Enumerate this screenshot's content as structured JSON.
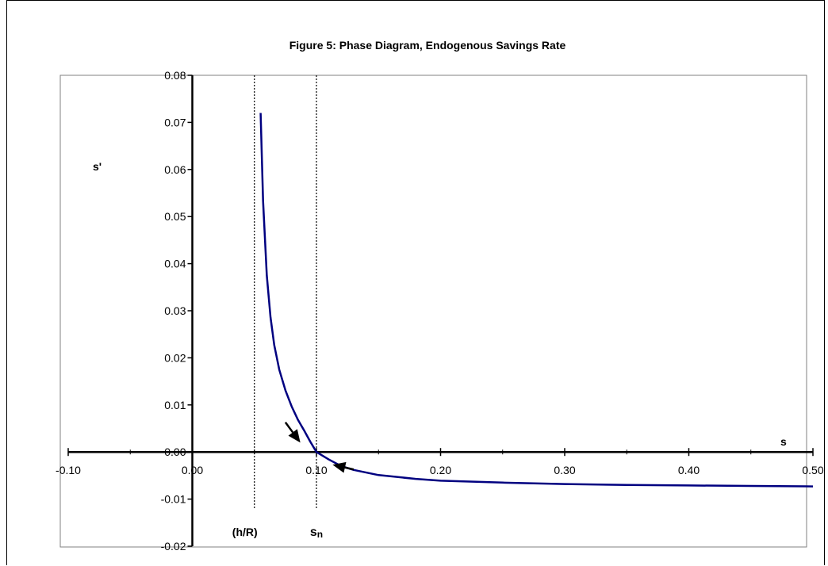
{
  "chart_data": {
    "type": "line",
    "title": "Figure 5: Phase Diagram, Endogenous Savings Rate",
    "xlabel": "s",
    "ylabel": "s'",
    "xlim": [
      -0.1,
      0.5
    ],
    "ylim": [
      -0.02,
      0.08
    ],
    "x_ticks": [
      -0.1,
      0.0,
      0.1,
      0.2,
      0.3,
      0.4,
      0.5
    ],
    "x_tick_labels": [
      "-0.10",
      "0.00",
      "0.10",
      "0.20",
      "0.30",
      "0.40",
      "0.50"
    ],
    "y_ticks": [
      -0.02,
      -0.01,
      0.0,
      0.01,
      0.02,
      0.03,
      0.04,
      0.05,
      0.06,
      0.07,
      0.08
    ],
    "y_tick_labels": [
      "-0.02",
      "-0.01",
      "0.00",
      "0.01",
      "0.02",
      "0.03",
      "0.04",
      "0.05",
      "0.06",
      "0.07",
      "0.08"
    ],
    "series": [
      {
        "color": "#000080",
        "x": [
          0.055,
          0.057,
          0.06,
          0.063,
          0.066,
          0.07,
          0.075,
          0.08,
          0.085,
          0.09,
          0.095,
          0.1,
          0.11,
          0.12,
          0.13,
          0.15,
          0.18,
          0.2,
          0.25,
          0.3,
          0.35,
          0.4,
          0.45,
          0.5
        ],
        "y": [
          0.072,
          0.0533,
          0.0375,
          0.0286,
          0.0227,
          0.0175,
          0.0131,
          0.0097,
          0.0069,
          0.0046,
          0.0022,
          0.0,
          -0.0016,
          -0.003,
          -0.0038,
          -0.0049,
          -0.0057,
          -0.0061,
          -0.0065,
          -0.0068,
          -0.007,
          -0.0071,
          -0.0072,
          -0.0073
        ]
      }
    ],
    "reference_lines": [
      {
        "x": 0.05,
        "label": "(h/R)",
        "style": "dotted"
      },
      {
        "x": 0.1,
        "label": "sn",
        "style": "dotted"
      }
    ],
    "arrows": [
      {
        "from": [
          0.075,
          0.0063
        ],
        "to": [
          0.087,
          0.002
        ]
      },
      {
        "from": [
          0.13,
          -0.0037
        ],
        "to": [
          0.113,
          -0.0027
        ]
      }
    ],
    "grid": false,
    "legend": "none"
  }
}
